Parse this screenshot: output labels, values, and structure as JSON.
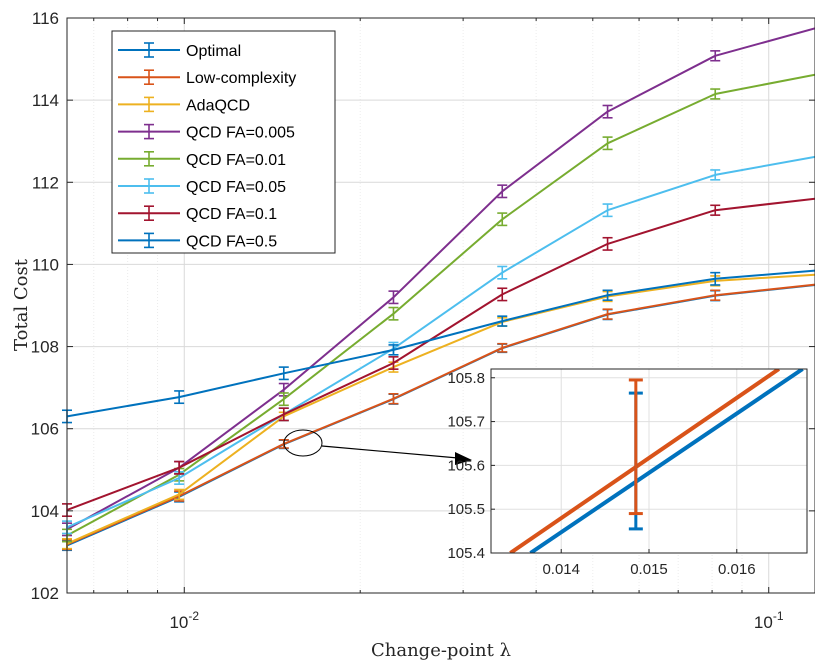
{
  "chart_data": {
    "type": "line",
    "xscale": "log",
    "xlabel": "Change-point λ",
    "ylabel": "Total Cost",
    "xlim": [
      0.0063,
      0.12
    ],
    "ylim": [
      102,
      116
    ],
    "x_ticks": [
      {
        "value": 0.01,
        "base": "10",
        "exp": "-2"
      },
      {
        "value": 0.1,
        "base": "10",
        "exp": "-1"
      }
    ],
    "y_ticks": [
      "102",
      "104",
      "106",
      "108",
      "110",
      "112",
      "114",
      "116"
    ],
    "grid": true,
    "minor_grid": true,
    "legend_position": "top-left",
    "x": [
      0.0063,
      0.0098,
      0.0148,
      0.0228,
      0.035,
      0.053,
      0.081,
      0.12
    ],
    "series": [
      {
        "name": "Optimal",
        "color": "#0072BD",
        "values": [
          103.16,
          104.34,
          105.62,
          106.72,
          107.96,
          108.78,
          109.24,
          109.5
        ],
        "errors": [
          0.12,
          0.12,
          0.1,
          0.12,
          0.1,
          0.12,
          0.12,
          0.1
        ]
      },
      {
        "name": "Low-complexity",
        "color": "#D95319",
        "values": [
          103.18,
          104.36,
          105.63,
          106.73,
          107.97,
          108.79,
          109.25,
          109.51
        ],
        "errors": [
          0.12,
          0.12,
          0.1,
          0.12,
          0.1,
          0.12,
          0.12,
          0.1
        ]
      },
      {
        "name": "AdaQCD",
        "color": "#EDB120",
        "values": [
          103.2,
          104.4,
          106.3,
          107.5,
          108.6,
          109.22,
          109.6,
          109.75
        ],
        "errors": [
          0.12,
          0.12,
          0.1,
          0.12,
          0.1,
          0.12,
          0.12,
          0.1
        ]
      },
      {
        "name": "QCD FA=0.005",
        "color": "#7E2F8E",
        "values": [
          103.55,
          105.05,
          106.95,
          109.2,
          111.78,
          113.72,
          115.08,
          115.75
        ],
        "errors": [
          0.15,
          0.15,
          0.15,
          0.15,
          0.15,
          0.15,
          0.12,
          0.1
        ]
      },
      {
        "name": "QCD FA=0.01",
        "color": "#77AC30",
        "values": [
          103.4,
          104.88,
          106.72,
          108.8,
          111.1,
          112.95,
          114.15,
          114.62
        ],
        "errors": [
          0.15,
          0.15,
          0.15,
          0.15,
          0.15,
          0.15,
          0.12,
          0.1
        ]
      },
      {
        "name": "QCD FA=0.05",
        "color": "#4DBEEE",
        "values": [
          103.6,
          104.8,
          106.35,
          107.95,
          109.8,
          111.32,
          112.18,
          112.62
        ],
        "errors": [
          0.15,
          0.15,
          0.15,
          0.15,
          0.15,
          0.15,
          0.12,
          0.1
        ]
      },
      {
        "name": "QCD FA=0.1",
        "color": "#A2142F",
        "values": [
          104.02,
          105.05,
          106.35,
          107.6,
          109.27,
          110.5,
          111.32,
          111.6
        ],
        "errors": [
          0.15,
          0.15,
          0.15,
          0.15,
          0.15,
          0.15,
          0.12,
          0.1
        ]
      },
      {
        "name": "QCD FA=0.5",
        "color": "#0072BD",
        "values": [
          106.3,
          106.77,
          107.35,
          107.92,
          108.62,
          109.25,
          109.65,
          109.85
        ],
        "errors": [
          0.15,
          0.15,
          0.15,
          0.12,
          0.12,
          0.12,
          0.15,
          0.1
        ]
      }
    ],
    "inset": {
      "xlim": [
        0.0132,
        0.0168
      ],
      "ylim": [
        105.4,
        105.82
      ],
      "x_ticks": [
        "0.014",
        "0.015",
        "0.016"
      ],
      "x_tick_values": [
        0.014,
        0.015,
        0.016
      ],
      "y_ticks": [
        "105.4",
        "105.5",
        "105.6",
        "105.7",
        "105.8"
      ],
      "y_tick_values": [
        105.4,
        105.5,
        105.6,
        105.7,
        105.8
      ],
      "lines": [
        {
          "series": "Optimal",
          "color": "#0072BD",
          "from": [
            0.01365,
            105.4
          ],
          "to": [
            0.01675,
            105.82
          ]
        },
        {
          "series": "Low-complexity",
          "color": "#D95319",
          "from": [
            0.01342,
            105.4
          ],
          "to": [
            0.01648,
            105.82
          ]
        }
      ],
      "errorbars": [
        {
          "series": "Optimal",
          "color": "#0072BD",
          "x": 0.01485,
          "low": 105.455,
          "high": 105.765
        },
        {
          "series": "Low-complexity",
          "color": "#D95319",
          "x": 0.01485,
          "low": 105.49,
          "high": 105.795
        }
      ]
    }
  }
}
